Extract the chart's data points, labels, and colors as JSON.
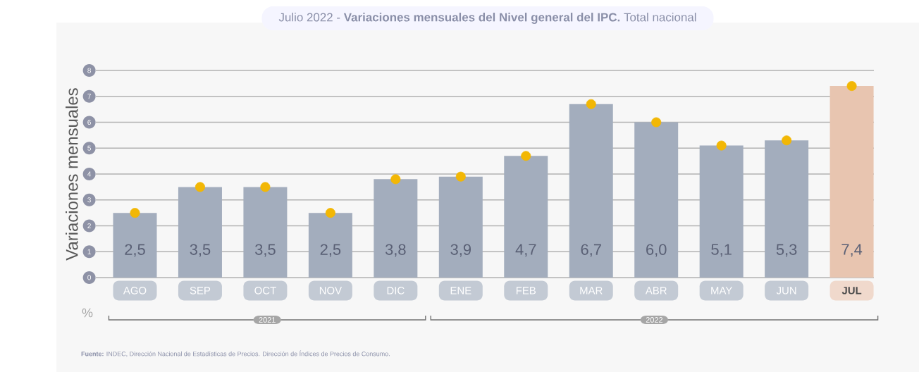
{
  "chart_data": {
    "type": "bar",
    "title": "Julio 2022 - **Variaciones mensuales del Nivel general del IPC.** Total nacional",
    "ylabel": "Variaciones mensuales",
    "categories": [
      "AGO",
      "SEP",
      "OCT",
      "NOV",
      "DIC",
      "ENE",
      "FEB",
      "MAR",
      "ABR",
      "MAY",
      "JUN",
      "JUL"
    ],
    "series": [
      {
        "values": [
          2.5,
          3.5,
          3.5,
          2.5,
          3.8,
          3.9,
          4.7,
          6.7,
          6.0,
          5.1,
          5.3,
          7.4
        ],
        "colors": [
          "#a3adbd",
          "#a3adbd",
          "#a3adbd",
          "#a3adbd",
          "#a3adbd",
          "#a3adbd",
          "#a3adbd",
          "#a3adbd",
          "#a3adbd",
          "#a3adbd",
          "#a3adbd",
          "#e8c5b0"
        ],
        "value_labels": [
          "2,5",
          "3,5",
          "3,5",
          "2,5",
          "3,8",
          "3,9",
          "4,7",
          "6,7",
          "6,0",
          "5,1",
          "5,3",
          "7,4"
        ]
      },
      {
        "type": "scatter",
        "x": [
          "AGO",
          "SEP",
          "OCT",
          "NOV",
          "DIC",
          "ENE",
          "FEB",
          "MAR",
          "ABR",
          "MAY",
          "JUN",
          "JUL"
        ],
        "values": [
          2.5,
          3.5,
          3.5,
          2.5,
          3.8,
          3.9,
          4.7,
          6.7,
          6.0,
          5.1,
          5.3,
          7.4
        ],
        "color": "#f2b705",
        "marker": "circle"
      }
    ],
    "ylim": [
      0,
      8
    ],
    "yticks": [
      0,
      1,
      2,
      3,
      4,
      5,
      6,
      7,
      8
    ],
    "grid": "y",
    "annotations": [
      "%",
      "2021",
      "2022",
      "**Fuente:** INDEC, Dirección Nacional de Estadísticas de Precios. Dirección de Índices de Precios de Consumo."
    ]
  }
}
